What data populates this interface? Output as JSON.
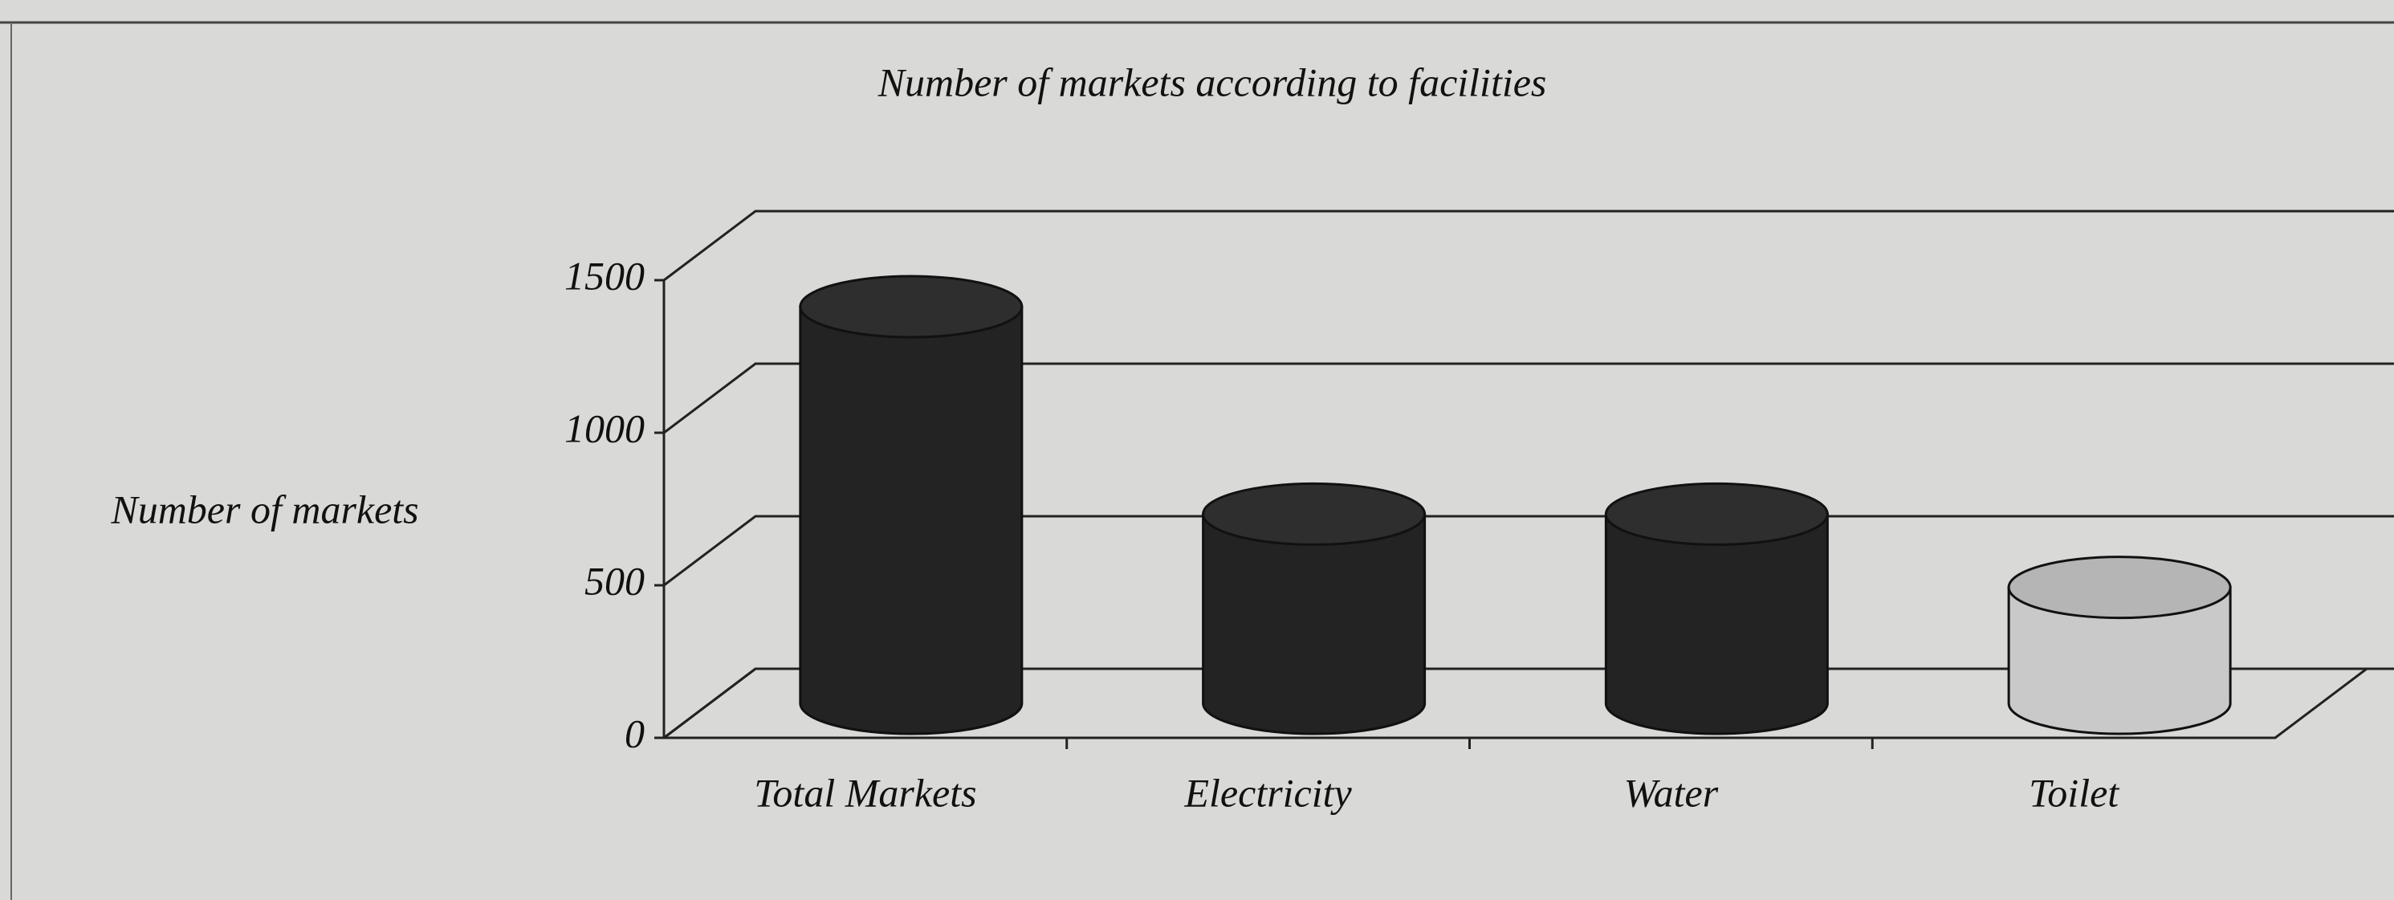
{
  "chart_data": {
    "type": "bar3d",
    "title": "Number of markets according to facilities",
    "y_label": "Number of markets",
    "categories": [
      "Total Markets",
      "Electricity",
      "Water",
      "Toilet"
    ],
    "values": [
      1300,
      620,
      620,
      380
    ],
    "colors": [
      "#232323",
      "#232323",
      "#232323",
      "#c9c9c9"
    ],
    "ylim": [
      0,
      1500
    ],
    "yticks": [
      0,
      500,
      1000,
      1500
    ],
    "grid": true
  }
}
